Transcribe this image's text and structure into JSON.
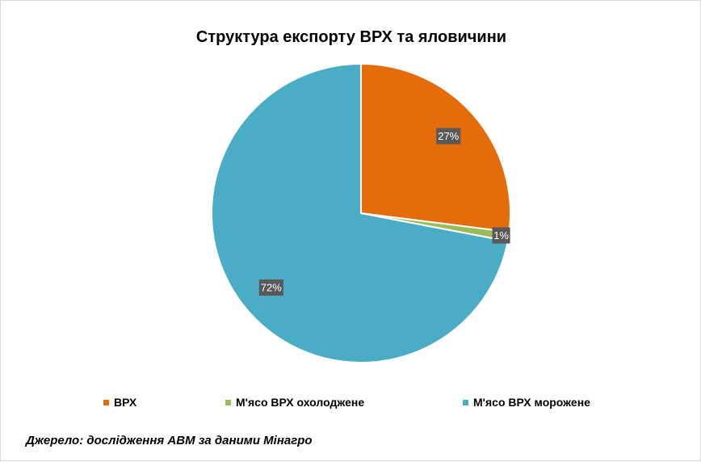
{
  "chart_data": {
    "type": "pie",
    "title": "Структура експорту ВРХ та яловичини",
    "categories": [
      "ВРХ",
      "М'ясо ВРХ охолоджене",
      "М'ясо ВРХ морожене"
    ],
    "values": [
      27,
      1,
      72
    ],
    "labels": [
      "27%",
      "1%",
      "72%"
    ],
    "colors": [
      "#E46C0A",
      "#9BBB59",
      "#4BACC6"
    ],
    "legend_position": "bottom"
  },
  "source_note": "Джерело: дослідження АВМ за даними Мінагро"
}
